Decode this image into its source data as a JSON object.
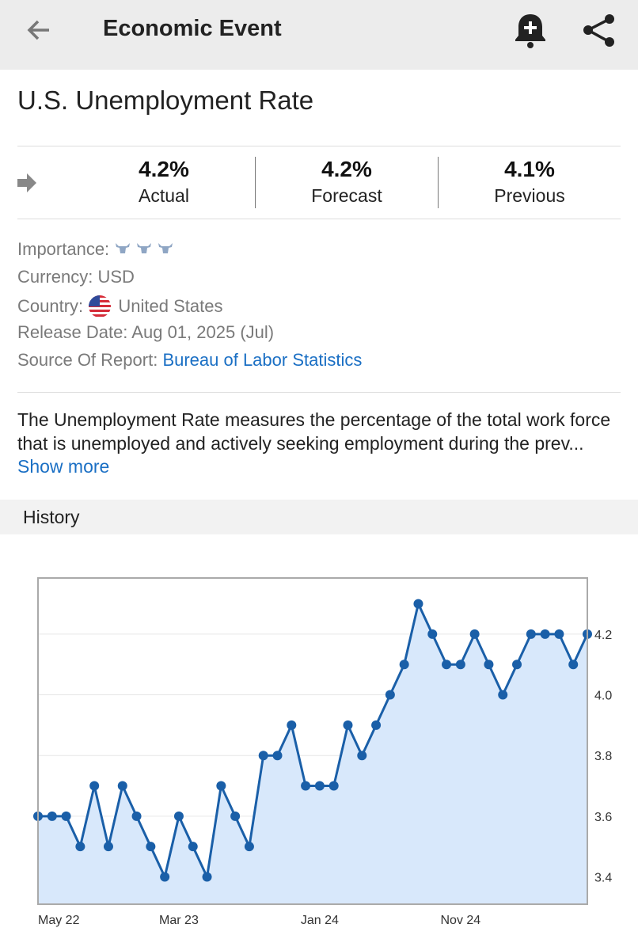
{
  "header": {
    "title": "Economic Event"
  },
  "event": {
    "title": "U.S. Unemployment Rate"
  },
  "stats": [
    {
      "value": "4.2%",
      "label": "Actual"
    },
    {
      "value": "4.2%",
      "label": "Forecast"
    },
    {
      "value": "4.1%",
      "label": "Previous"
    }
  ],
  "details": {
    "importance": "Importance:",
    "currency": "Currency: USD",
    "country_label": "Country:",
    "country": "United States",
    "release": "Release Date: Aug 01, 2025 (Jul)",
    "source_label": "Source Of Report:",
    "source": "Bureau of Labor Statistics"
  },
  "description": {
    "text": "The Unemployment Rate measures the percentage of the total work force that is unemployed and actively seeking employment during the prev...",
    "more": "Show more"
  },
  "section": {
    "title": "History"
  },
  "chart_data": {
    "type": "area",
    "categories": [
      "May 22",
      null,
      null,
      null,
      null,
      null,
      null,
      null,
      null,
      null,
      "Mar 23",
      null,
      null,
      null,
      null,
      null,
      null,
      null,
      null,
      null,
      "Jan 24",
      null,
      null,
      null,
      null,
      null,
      null,
      null,
      null,
      null,
      "Nov 24",
      null,
      null,
      null,
      null,
      null,
      null,
      null,
      null,
      null
    ],
    "values": [
      3.6,
      3.6,
      3.6,
      3.5,
      3.7,
      3.5,
      3.7,
      3.6,
      3.5,
      3.4,
      3.6,
      3.5,
      3.4,
      3.7,
      3.6,
      3.5,
      3.8,
      3.8,
      3.9,
      3.7,
      3.7,
      3.7,
      3.9,
      3.8,
      3.9,
      4.0,
      4.1,
      4.3,
      4.2,
      4.1,
      4.1,
      4.2,
      4.1,
      4.0,
      4.1,
      4.2,
      4.2,
      4.2,
      4.1,
      4.2
    ],
    "color": "#1a5fa8",
    "fill": "#d8e8fb",
    "ylim": [
      3.31,
      4.385
    ],
    "yticks": [
      3.4,
      3.6,
      3.8,
      {
        "value": 4,
        "label": "4.0"
      },
      4.2
    ],
    "grid": true,
    "y_axis_side": "right"
  }
}
